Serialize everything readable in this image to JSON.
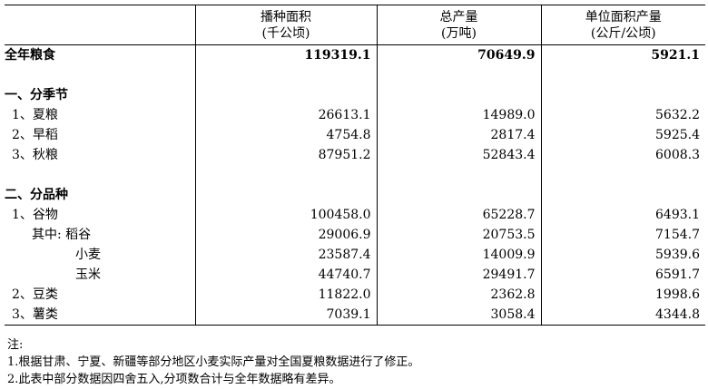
{
  "header": {
    "col1_line1": "播种面积",
    "col1_line2": "(千公顷)",
    "col2_line1": "总产量",
    "col2_line2": "(万吨)",
    "col3_line1": "单位面积产量",
    "col3_line2": "(公斤/公顷)"
  },
  "total": {
    "label": "全年粮食",
    "area": "119319.1",
    "output": "70649.9",
    "yield": "5921.1"
  },
  "season": {
    "title": "一、分季节",
    "rows": [
      {
        "label": "1、夏粮",
        "area": "26613.1",
        "output": "14989.0",
        "yield": "5632.2"
      },
      {
        "label": "2、早稻",
        "area": "4754.8",
        "output": "2817.4",
        "yield": "5925.4"
      },
      {
        "label": "3、秋粮",
        "area": "87951.2",
        "output": "52843.4",
        "yield": "6008.3"
      }
    ]
  },
  "variety": {
    "title": "二、分品种",
    "cereals": {
      "label": "1、谷物",
      "area": "100458.0",
      "output": "65228.7",
      "yield": "6493.1"
    },
    "rice": {
      "label": "其中: 稻谷",
      "area": "29006.9",
      "output": "20753.5",
      "yield": "7154.7"
    },
    "wheat": {
      "label": "小麦",
      "area": "23587.4",
      "output": "14009.9",
      "yield": "5939.6"
    },
    "corn": {
      "label": "玉米",
      "area": "44740.7",
      "output": "29491.7",
      "yield": "6591.7"
    },
    "beans": {
      "label": "2、豆类",
      "area": "11822.0",
      "output": "2362.8",
      "yield": "1998.6"
    },
    "tubers": {
      "label": "3、薯类",
      "area": "7039.1",
      "output": "3058.4",
      "yield": "4344.8"
    }
  },
  "notes": {
    "title": "注:",
    "line1": "1.根据甘肃、宁夏、新疆等部分地区小麦实际产量对全国夏粮数据进行了修正。",
    "line2": "2.此表中部分数据因四舍五入,分项数合计与全年数据略有差异。"
  }
}
